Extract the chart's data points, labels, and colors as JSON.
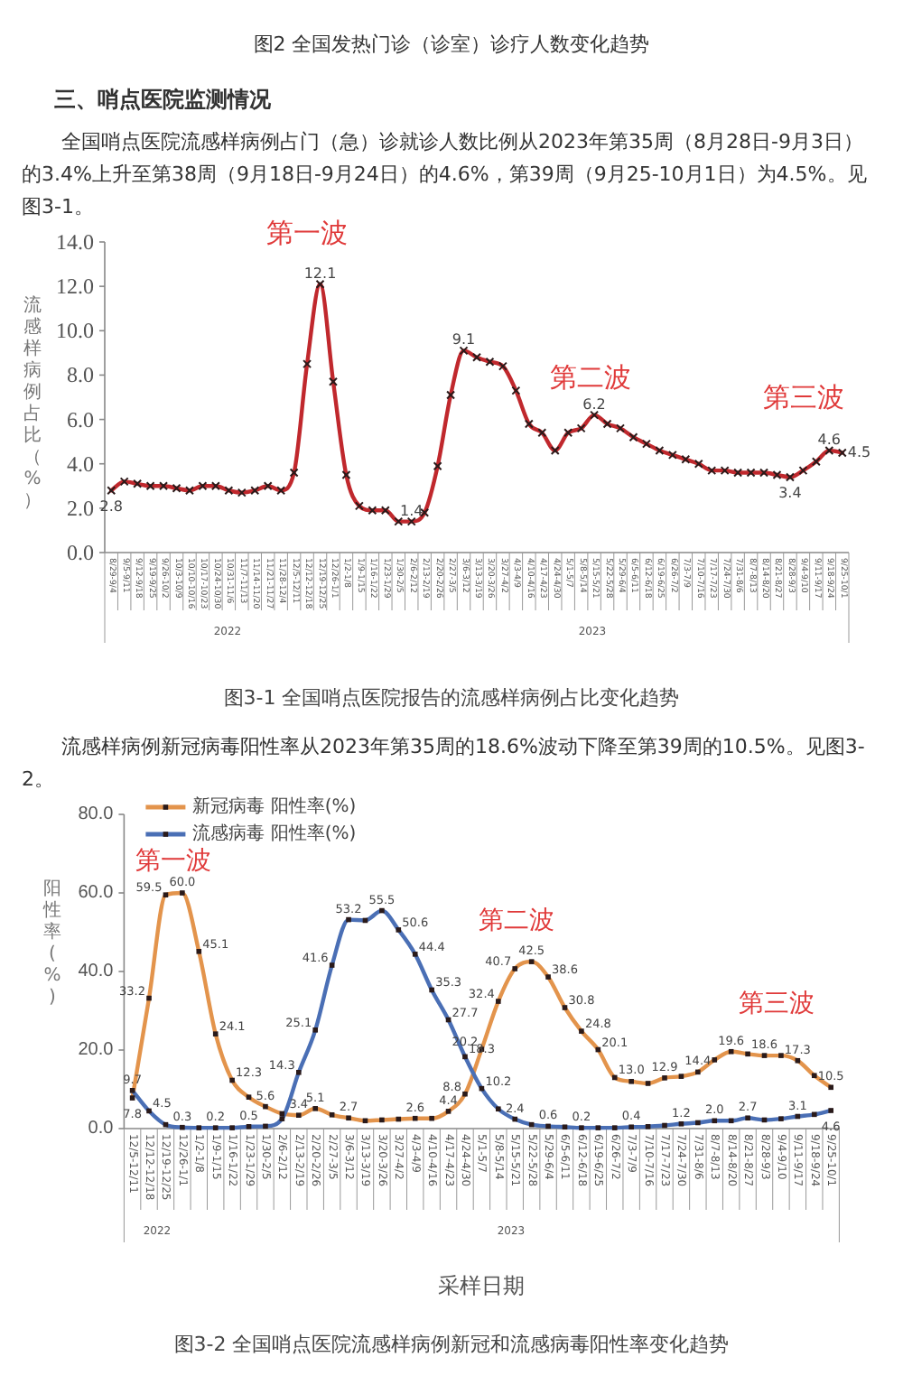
{
  "chart_data": [
    {
      "type": "line",
      "title": "图3-1 全国哨点医院报告的流感样病例占比变化趋势",
      "ylabel": "流感样病例占比（%）",
      "annotations": [
        "图2 全国发热门诊（诊室）诊疗人数变化趋势",
        "三、哨点医院监测情况",
        "全国哨点医院流感样病例占门（急）诊就诊人数比例从2023年第35周（8月28日-9月3日）的3.4%上升至第38周（9月18日-9月24日）的4.6%，第39周（9月25-10月1日）为4.5%。见图3-1。",
        "第一波",
        "第二波",
        "第三波",
        "2022",
        "2023"
      ],
      "categories": [
        "8/29-9/4",
        "9/5-9/11",
        "9/12-9/18",
        "9/19-9/25",
        "9/26-10/2",
        "10/3-10/9",
        "10/10-10/16",
        "10/17-10/23",
        "10/24-10/30",
        "10/31-11/6",
        "11/7-11/13",
        "11/14-11/20",
        "11/21-11/27",
        "11/28-12/4",
        "12/5-12/11",
        "12/12-12/18",
        "12/19-12/25",
        "12/26-1/1",
        "1/2-1/8",
        "1/9-1/15",
        "1/16-1/22",
        "1/23-1/29",
        "1/30-2/5",
        "2/6-2/12",
        "2/13-2/19",
        "2/20-2/26",
        "2/27-3/5",
        "3/6-3/12",
        "3/13-3/19",
        "3/20-3/26",
        "3/27-4/2",
        "4/3-4/9",
        "4/10-4/16",
        "4/17-4/23",
        "4/24-4/30",
        "5/1-5/7",
        "5/8-5/14",
        "5/15-5/21",
        "5/22-5/28",
        "5/29-6/4",
        "6/5-6/11",
        "6/12-6/18",
        "6/19-6/25",
        "6/26-7/2",
        "7/3-7/9",
        "7/10-7/16",
        "7/17-7/23",
        "7/24-7/30",
        "7/31-8/6",
        "8/7-8/13",
        "8/14-8/20",
        "8/21-8/27",
        "8/28-9/3",
        "9/4-9/10",
        "9/11-9/17",
        "9/18-9/24",
        "9/25-10/1"
      ],
      "series": [
        {
          "color": "#c0282d",
          "values": [
            2.8,
            3.2,
            3.1,
            3.0,
            3.0,
            2.9,
            2.8,
            3.0,
            3.0,
            2.8,
            2.7,
            2.8,
            3.0,
            2.8,
            3.6,
            8.5,
            12.1,
            7.7,
            3.5,
            2.1,
            1.9,
            1.9,
            1.4,
            1.4,
            1.8,
            3.9,
            7.1,
            9.1,
            8.8,
            8.6,
            8.4,
            7.3,
            5.8,
            5.4,
            4.6,
            5.4,
            5.6,
            6.2,
            5.8,
            5.6,
            5.2,
            4.9,
            4.6,
            4.4,
            4.2,
            4.0,
            3.7,
            3.7,
            3.6,
            3.6,
            3.6,
            3.5,
            3.4,
            3.7,
            4.1,
            4.6,
            4.5
          ],
          "value_labels": [
            "2.8",
            null,
            null,
            null,
            null,
            null,
            null,
            null,
            null,
            null,
            null,
            null,
            null,
            null,
            null,
            null,
            "12.1",
            null,
            null,
            null,
            null,
            null,
            null,
            "1.4",
            null,
            null,
            null,
            "9.1",
            null,
            null,
            null,
            null,
            null,
            null,
            null,
            null,
            null,
            "6.2",
            null,
            null,
            null,
            null,
            null,
            null,
            null,
            null,
            null,
            null,
            null,
            null,
            null,
            null,
            "3.4",
            null,
            null,
            "4.6",
            "4.5"
          ]
        }
      ],
      "ylim": [
        0,
        14
      ],
      "yticks": [
        {
          "value": 0,
          "label": "0.0"
        },
        {
          "value": 2,
          "label": "2.0"
        },
        {
          "value": 4,
          "label": "4.0"
        },
        {
          "value": 6,
          "label": "6.0"
        },
        {
          "value": 8,
          "label": "8.0"
        },
        {
          "value": 10,
          "label": "10.0"
        },
        {
          "value": 12,
          "label": "12.0"
        },
        {
          "value": 14,
          "label": "14.0"
        }
      ],
      "marker": "cross",
      "line_style": "solid",
      "grid": false,
      "legend": false
    },
    {
      "type": "line",
      "title": "图3-2 全国哨点医院流感样病例新冠和流感病毒阳性率变化趋势",
      "ylabel": "阳性率(%)",
      "xlabel": "采样日期",
      "annotations": [
        "流感样病例新冠病毒阳性率从2023年第35周的18.6%波动下降至第39周的10.5%。见图3-2。",
        "第一波",
        "第二波",
        "第三波",
        "2022",
        "2023"
      ],
      "categories": [
        "12/5-12/11",
        "12/12-12/18",
        "12/19-12/25",
        "12/26-1/1",
        "1/2-1/8",
        "1/9-1/15",
        "1/16-1/22",
        "1/23-1/29",
        "1/30-2/5",
        "2/6-2/12",
        "2/13-2/19",
        "2/20-2/26",
        "2/27-3/5",
        "3/6-3/12",
        "3/13-3/19",
        "3/20-3/26",
        "3/27-4/2",
        "4/3-4/9",
        "4/10-4/16",
        "4/17-4/23",
        "4/24-4/30",
        "5/1-5/7",
        "5/8-5/14",
        "5/15-5/21",
        "5/22-5/28",
        "5/29-6/4",
        "6/5-6/11",
        "6/12-6/18",
        "6/19-6/25",
        "6/26-7/2",
        "7/3-7/9",
        "7/10-7/16",
        "7/17-7/23",
        "7/24-7/30",
        "7/31-8/6",
        "8/7-8/13",
        "8/14-8/20",
        "8/21-8/27",
        "8/28-9/3",
        "9/4-9/10",
        "9/11-9/17",
        "9/18-9/24",
        "9/25-10/1"
      ],
      "series": [
        {
          "name": "新冠病毒 阳性率(%)",
          "color": "#e3944c",
          "values": [
            7.8,
            33.2,
            59.5,
            60.0,
            45.1,
            24.1,
            12.3,
            8.0,
            5.6,
            3.8,
            3.4,
            5.1,
            3.5,
            2.7,
            2.0,
            2.2,
            2.4,
            2.6,
            2.6,
            4.4,
            8.8,
            20.2,
            32.4,
            40.7,
            42.5,
            38.6,
            30.8,
            24.8,
            20.1,
            13.0,
            12.0,
            11.5,
            12.9,
            13.3,
            14.4,
            17.5,
            19.6,
            19.0,
            18.6,
            18.6,
            17.3,
            13.5,
            10.5
          ],
          "value_labels": [
            "7.8",
            "33.2",
            "59.5",
            "60.0",
            "45.1",
            "24.1",
            "12.3",
            null,
            "5.6",
            null,
            "3.4",
            "5.1",
            null,
            "2.7",
            null,
            null,
            null,
            "2.6",
            null,
            "4.4",
            "8.8",
            "20.2",
            "32.4",
            "40.7",
            "42.5",
            "38.6",
            "30.8",
            "24.8",
            "20.1",
            "13.0",
            null,
            null,
            "12.9",
            null,
            "14.4",
            null,
            "19.6",
            null,
            "18.6",
            null,
            "17.3",
            null,
            "10.5"
          ]
        },
        {
          "name": "流感病毒 阳性率(%)",
          "color": "#4a6fb5",
          "values": [
            9.7,
            4.5,
            1.0,
            0.3,
            0.2,
            0.2,
            0.2,
            0.5,
            0.6,
            2.5,
            14.3,
            25.1,
            41.6,
            53.2,
            53.0,
            55.5,
            50.6,
            44.4,
            35.3,
            27.7,
            18.3,
            10.2,
            5.0,
            2.4,
            1.0,
            0.6,
            0.4,
            0.2,
            0.2,
            0.2,
            0.4,
            0.5,
            0.8,
            1.2,
            1.5,
            2.0,
            2.0,
            2.7,
            2.2,
            2.5,
            3.1,
            3.6,
            4.6
          ],
          "value_labels": [
            "9.7",
            "4.5",
            null,
            "0.3",
            null,
            "0.2",
            null,
            "0.5",
            null,
            null,
            "14.3",
            "25.1",
            "41.6",
            "53.2",
            null,
            "55.5",
            "50.6",
            "44.4",
            "35.3",
            "27.7",
            "18.3",
            "10.2",
            null,
            "2.4",
            null,
            "0.6",
            null,
            "0.2",
            null,
            null,
            "0.4",
            null,
            null,
            "1.2",
            null,
            "2.0",
            null,
            "2.7",
            null,
            null,
            "3.1",
            null,
            "4.6"
          ]
        }
      ],
      "ylim": [
        0,
        80
      ],
      "yticks": [
        {
          "value": 0,
          "label": "0.0"
        },
        {
          "value": 20,
          "label": "20.0"
        },
        {
          "value": 40,
          "label": "40.0"
        },
        {
          "value": 60,
          "label": "60.0"
        },
        {
          "value": 80,
          "label": "80.0"
        }
      ],
      "marker": "square",
      "line_style": "solid",
      "grid": false,
      "legend": "top left"
    }
  ]
}
